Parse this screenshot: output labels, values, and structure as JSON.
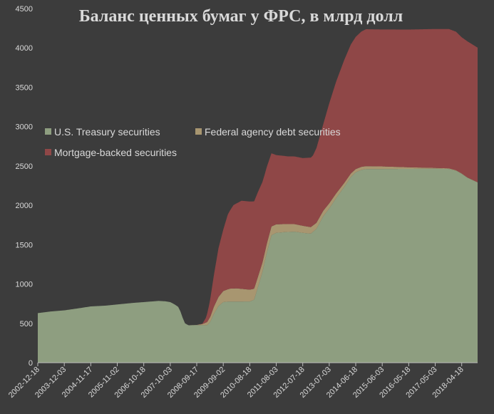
{
  "chart_data": {
    "type": "area",
    "stacked": true,
    "title": "Баланс ценных бумаг у ФРС, в млрд долл",
    "xlabel": "",
    "ylabel": "",
    "ylim": [
      0,
      4500
    ],
    "yticks": [
      0,
      500,
      1000,
      1500,
      2000,
      2500,
      3000,
      3500,
      4000,
      4500
    ],
    "grid": false,
    "legend_position": "center-left",
    "x_tick_labels": [
      "2002-12-18",
      "2003-12-03",
      "2004-11-17",
      "2005-11-02",
      "2006-10-18",
      "2007-10-03",
      "2008-09-17",
      "2009-09-02",
      "2010-08-18",
      "2011-08-03",
      "2012-07-18",
      "2013-07-03",
      "2014-06-18",
      "2015-06-03",
      "2016-05-18",
      "2017-05-03",
      "2018-04-18"
    ],
    "x_range": [
      "2002-12-18",
      "2018-11-14"
    ],
    "series": [
      {
        "name": "U.S. Treasury securities",
        "color": "#8e9e80",
        "points": [
          [
            "2002-12-18",
            630
          ],
          [
            "2003-06-01",
            650
          ],
          [
            "2003-12-03",
            665
          ],
          [
            "2004-06-01",
            690
          ],
          [
            "2004-11-17",
            715
          ],
          [
            "2005-06-01",
            725
          ],
          [
            "2005-11-02",
            740
          ],
          [
            "2006-06-01",
            760
          ],
          [
            "2006-10-18",
            770
          ],
          [
            "2007-05-01",
            785
          ],
          [
            "2007-08-01",
            780
          ],
          [
            "2007-10-03",
            770
          ],
          [
            "2007-12-01",
            740
          ],
          [
            "2008-01-15",
            710
          ],
          [
            "2008-02-15",
            650
          ],
          [
            "2008-03-15",
            570
          ],
          [
            "2008-04-15",
            500
          ],
          [
            "2008-06-01",
            475
          ],
          [
            "2008-09-17",
            478
          ],
          [
            "2008-12-01",
            476
          ],
          [
            "2009-02-01",
            476
          ],
          [
            "2009-03-15",
            520
          ],
          [
            "2009-05-01",
            620
          ],
          [
            "2009-07-01",
            720
          ],
          [
            "2009-09-02",
            770
          ],
          [
            "2009-11-01",
            776
          ],
          [
            "2010-03-01",
            776
          ],
          [
            "2010-08-18",
            778
          ],
          [
            "2010-10-15",
            800
          ],
          [
            "2010-12-01",
            950
          ],
          [
            "2011-02-01",
            1150
          ],
          [
            "2011-04-01",
            1400
          ],
          [
            "2011-06-01",
            1620
          ],
          [
            "2011-08-03",
            1650
          ],
          [
            "2011-12-01",
            1660
          ],
          [
            "2012-04-01",
            1665
          ],
          [
            "2012-07-18",
            1650
          ],
          [
            "2012-11-01",
            1640
          ],
          [
            "2013-01-15",
            1700
          ],
          [
            "2013-04-15",
            1860
          ],
          [
            "2013-07-03",
            1960
          ],
          [
            "2013-10-01",
            2090
          ],
          [
            "2014-01-15",
            2230
          ],
          [
            "2014-04-15",
            2360
          ],
          [
            "2014-06-18",
            2420
          ],
          [
            "2014-09-01",
            2450
          ],
          [
            "2014-11-01",
            2460
          ],
          [
            "2015-06-03",
            2461
          ],
          [
            "2016-05-18",
            2463
          ],
          [
            "2017-05-03",
            2465
          ],
          [
            "2017-11-01",
            2462
          ],
          [
            "2018-02-01",
            2440
          ],
          [
            "2018-04-18",
            2400
          ],
          [
            "2018-07-01",
            2350
          ],
          [
            "2018-11-14",
            2290
          ]
        ]
      },
      {
        "name": "Federal agency debt securities",
        "color": "#a89670",
        "points": [
          [
            "2002-12-18",
            0
          ],
          [
            "2008-06-01",
            0
          ],
          [
            "2008-09-17",
            2
          ],
          [
            "2008-12-01",
            15
          ],
          [
            "2009-02-01",
            40
          ],
          [
            "2009-05-01",
            90
          ],
          [
            "2009-09-02",
            140
          ],
          [
            "2009-12-01",
            165
          ],
          [
            "2010-03-01",
            168
          ],
          [
            "2010-08-18",
            150
          ],
          [
            "2011-03-01",
            115
          ],
          [
            "2011-08-03",
            108
          ],
          [
            "2012-07-18",
            90
          ],
          [
            "2013-07-03",
            65
          ],
          [
            "2014-06-18",
            40
          ],
          [
            "2015-06-03",
            33
          ],
          [
            "2016-05-18",
            20
          ],
          [
            "2017-05-03",
            10
          ],
          [
            "2018-04-18",
            5
          ],
          [
            "2018-11-14",
            3
          ]
        ]
      },
      {
        "name": "Mortgage-backed securities",
        "color": "#8f4747",
        "points": [
          [
            "2002-12-18",
            0
          ],
          [
            "2008-09-17",
            0
          ],
          [
            "2008-12-01",
            5
          ],
          [
            "2009-01-15",
            60
          ],
          [
            "2009-03-01",
            180
          ],
          [
            "2009-05-01",
            400
          ],
          [
            "2009-07-01",
            620
          ],
          [
            "2009-09-02",
            780
          ],
          [
            "2009-11-01",
            950
          ],
          [
            "2010-01-15",
            1060
          ],
          [
            "2010-03-15",
            1090
          ],
          [
            "2010-05-01",
            1120
          ],
          [
            "2010-08-18",
            1120
          ],
          [
            "2010-10-15",
            1110
          ],
          [
            "2010-12-01",
            1080
          ],
          [
            "2011-03-01",
            1000
          ],
          [
            "2011-06-01",
            930
          ],
          [
            "2011-08-03",
            880
          ],
          [
            "2012-01-01",
            860
          ],
          [
            "2012-07-18",
            860
          ],
          [
            "2012-12-01",
            890
          ],
          [
            "2013-01-15",
            950
          ],
          [
            "2013-04-15",
            1100
          ],
          [
            "2013-07-03",
            1270
          ],
          [
            "2013-10-01",
            1420
          ],
          [
            "2014-01-15",
            1560
          ],
          [
            "2014-04-15",
            1640
          ],
          [
            "2014-06-18",
            1680
          ],
          [
            "2014-09-01",
            1720
          ],
          [
            "2014-11-01",
            1740
          ],
          [
            "2015-06-03",
            1740
          ],
          [
            "2016-05-18",
            1750
          ],
          [
            "2017-05-03",
            1765
          ],
          [
            "2017-11-01",
            1770
          ],
          [
            "2018-02-01",
            1760
          ],
          [
            "2018-04-18",
            1730
          ],
          [
            "2018-07-01",
            1730
          ],
          [
            "2018-11-14",
            1710
          ]
        ]
      }
    ]
  }
}
